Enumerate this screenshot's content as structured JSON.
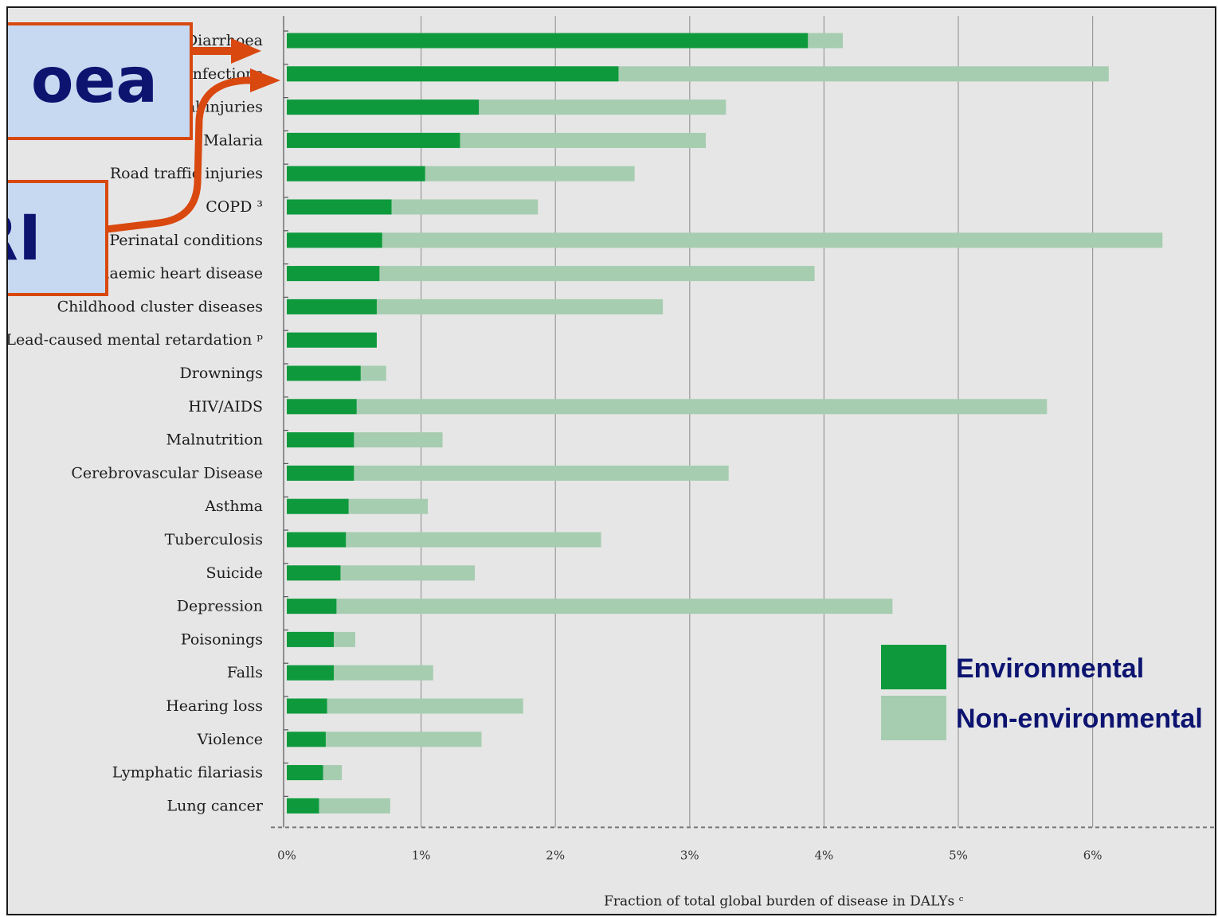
{
  "chart_data": {
    "type": "bar",
    "orientation": "horizontal",
    "stacked": true,
    "categories": [
      "Diarrhoea",
      "Lower respiratory infections",
      "Other unintentional injuries",
      "Malaria",
      "Road traffic injuries",
      "COPD ³",
      "Perinatal conditions",
      "Ischaemic heart disease",
      "Childhood cluster diseases",
      "Lead-caused mental retardation ᵖ",
      "Drownings",
      "HIV/AIDS",
      "Malnutrition",
      "Cerebrovascular Disease",
      "Asthma",
      "Tuberculosis",
      "Suicide",
      "Depression",
      "Poisonings",
      "Falls",
      "Hearing loss",
      "Violence",
      "Lymphatic filariasis",
      "Lung cancer"
    ],
    "series": [
      {
        "name": "Environmental",
        "color": "#0e9a3c",
        "values": [
          3.88,
          2.47,
          1.43,
          1.29,
          1.03,
          0.78,
          0.71,
          0.69,
          0.67,
          0.67,
          0.55,
          0.52,
          0.5,
          0.5,
          0.46,
          0.44,
          0.4,
          0.37,
          0.35,
          0.35,
          0.3,
          0.29,
          0.27,
          0.24
        ]
      },
      {
        "name": "Non-environmental",
        "color": "#a6cdb0",
        "values": [
          0.26,
          3.65,
          1.84,
          1.83,
          1.56,
          1.09,
          5.81,
          3.24,
          2.13,
          0.0,
          0.19,
          5.14,
          0.66,
          2.79,
          0.59,
          1.9,
          1.0,
          4.14,
          0.16,
          0.74,
          1.46,
          1.16,
          0.14,
          0.53
        ]
      }
    ],
    "xlim": [
      0,
      6.5
    ],
    "xticks": [
      "0%",
      "1%",
      "2%",
      "3%",
      "4%",
      "5%",
      "6%"
    ],
    "xlabel": "Fraction of total global burden of disease in DALYs ᶜ",
    "grid": true,
    "legend_position": "right"
  },
  "callouts": {
    "diarrhoea": "oea",
    "lri": "RI"
  },
  "colors": {
    "background": "#e6e6e6",
    "callout_fill": "#c6d9f1",
    "callout_border": "#d9480f",
    "arrow": "#d9480f",
    "legend_text": "#0d1470"
  }
}
